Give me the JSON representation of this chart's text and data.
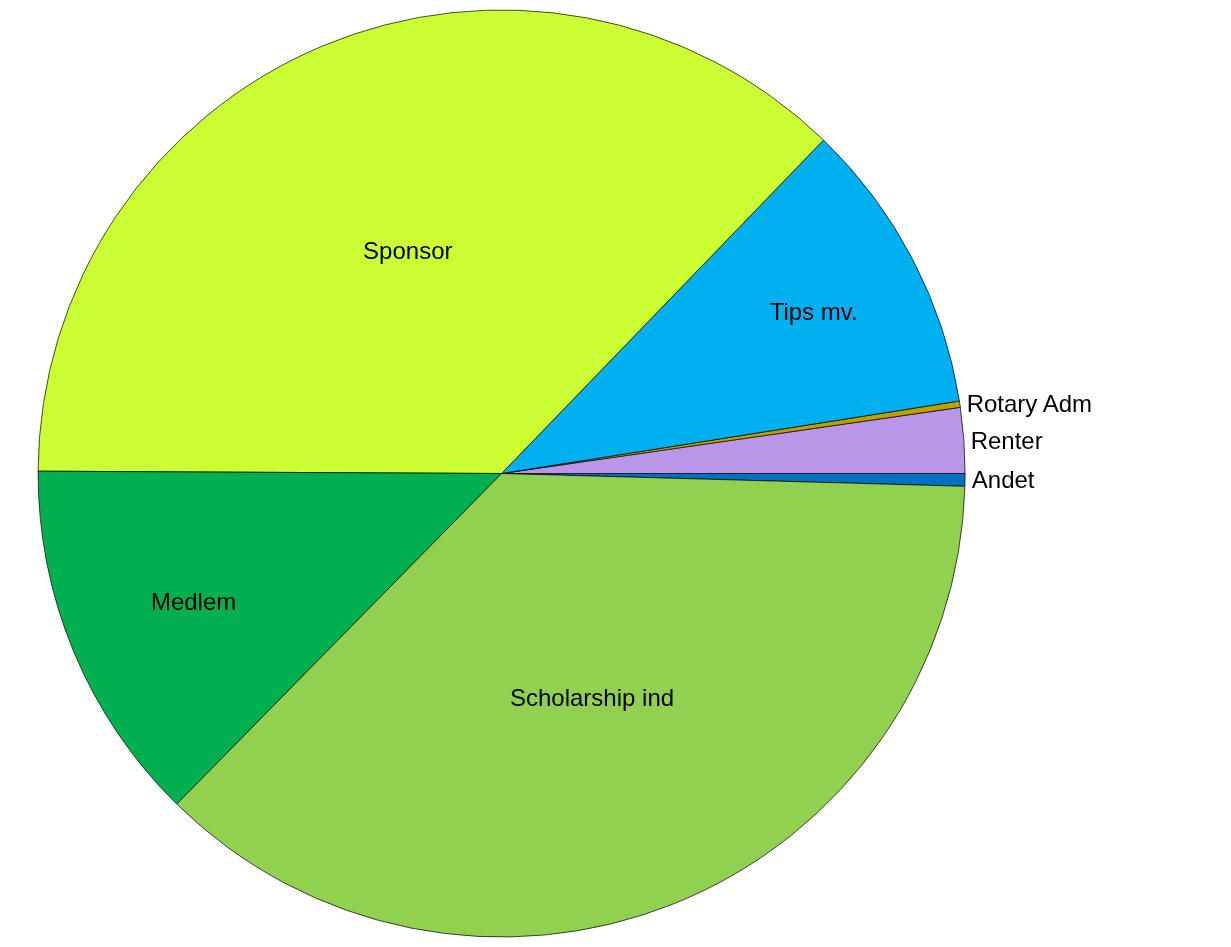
{
  "chart_data": {
    "type": "pie",
    "categories": [
      "Andet",
      "Renter",
      "Rotary Adm",
      "Tips mv.",
      "Sponsor",
      "Medlem",
      "Scholarship ind"
    ],
    "values": [
      0.44,
      2.28,
      0.22,
      10.28,
      37.14,
      12.72,
      36.92
    ],
    "colors": [
      "#0070c0",
      "#b996e8",
      "#bfa000",
      "#00b0f0",
      "#ccff33",
      "#00b050",
      "#92d050"
    ],
    "legend": false
  }
}
